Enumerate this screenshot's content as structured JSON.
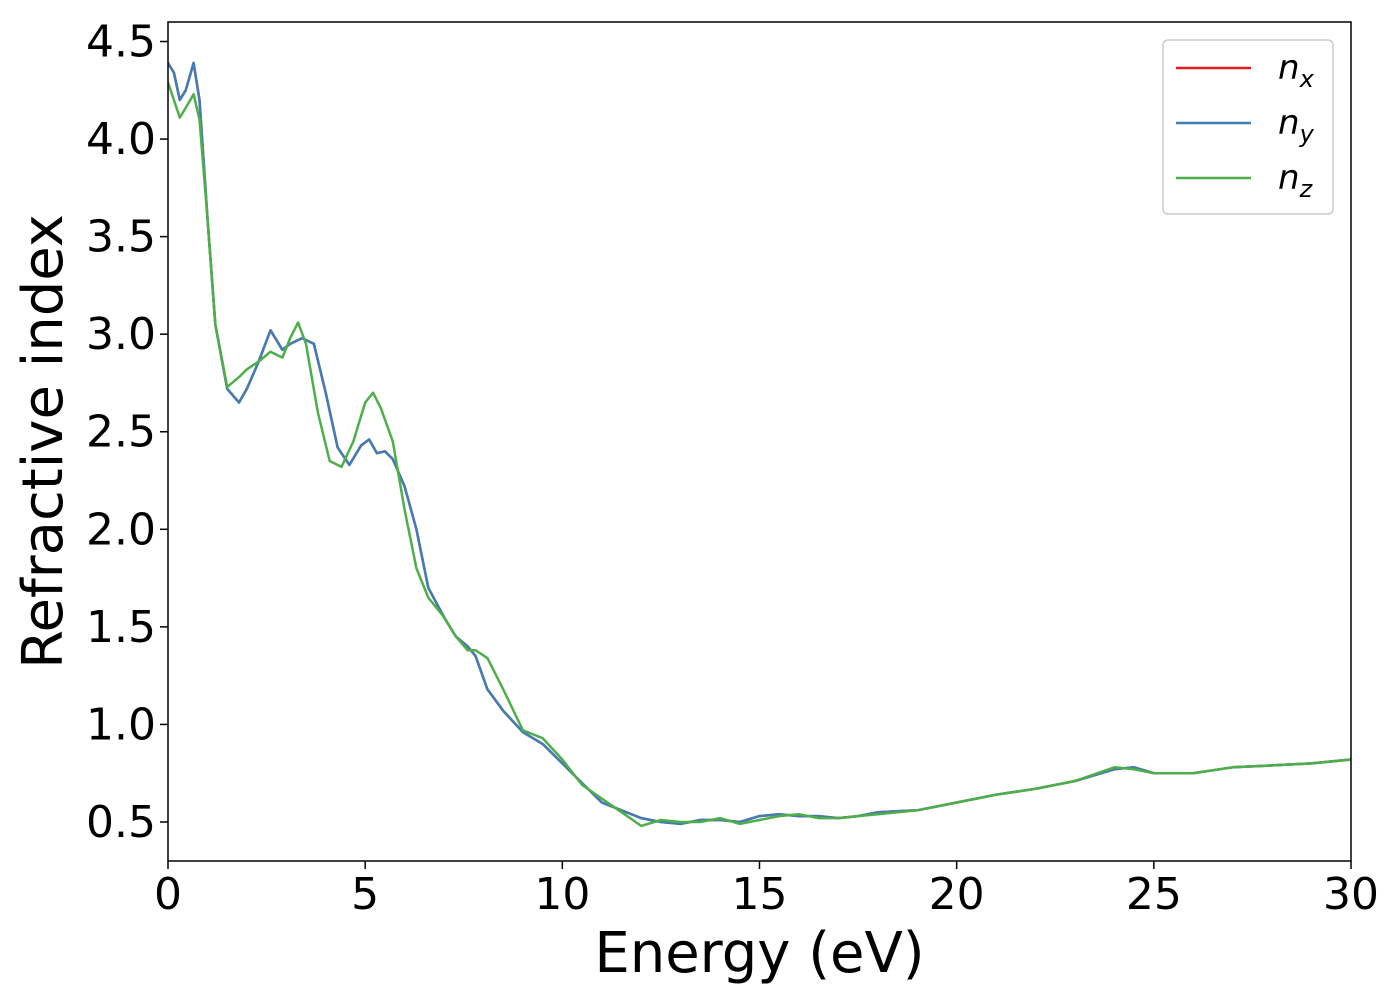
{
  "chart_data": {
    "type": "line",
    "xlabel": "Energy (eV)",
    "ylabel": "Refractive index",
    "xlim": [
      0,
      30
    ],
    "ylim": [
      0.3,
      4.6
    ],
    "xticks": [
      0,
      5,
      10,
      15,
      20,
      25,
      30
    ],
    "xtick_labels": [
      "0",
      "5",
      "10",
      "15",
      "20",
      "25",
      "30"
    ],
    "yticks": [
      0.5,
      1.0,
      1.5,
      2.0,
      2.5,
      3.0,
      3.5,
      4.0,
      4.5
    ],
    "ytick_labels": [
      "0.5",
      "1.0",
      "1.5",
      "2.0",
      "2.5",
      "3.0",
      "3.5",
      "4.0",
      "4.5"
    ],
    "grid": false,
    "legend_position": "top-right",
    "series": [
      {
        "name": "n_x",
        "legend_main": "n",
        "legend_sub": "x",
        "color": "#e41a1c",
        "x": [
          0,
          0.15,
          0.3,
          0.45,
          0.65,
          0.8,
          1.0,
          1.2,
          1.5,
          1.8,
          2.0,
          2.3,
          2.6,
          2.9,
          3.1,
          3.4,
          3.7,
          4.0,
          4.3,
          4.6,
          4.9,
          5.1,
          5.3,
          5.5,
          5.7,
          6.0,
          6.3,
          6.6,
          7.0,
          7.3,
          7.6,
          7.8,
          8.1,
          8.5,
          9.0,
          9.5,
          10.0,
          10.5,
          11.0,
          11.5,
          12.0,
          12.5,
          13.0,
          13.5,
          14.0,
          14.5,
          15.0,
          15.5,
          16.0,
          16.5,
          17.0,
          17.5,
          18.0,
          19.0,
          20.0,
          21.0,
          22.0,
          23.0,
          24.0,
          24.5,
          25.0,
          26.0,
          27.0,
          28.0,
          29.0,
          30.0
        ],
        "y": [
          4.39,
          4.34,
          4.2,
          4.25,
          4.39,
          4.2,
          3.6,
          3.05,
          2.72,
          2.65,
          2.72,
          2.86,
          3.02,
          2.92,
          2.95,
          2.98,
          2.95,
          2.7,
          2.42,
          2.33,
          2.43,
          2.46,
          2.39,
          2.4,
          2.36,
          2.22,
          2.0,
          1.7,
          1.55,
          1.45,
          1.4,
          1.35,
          1.18,
          1.07,
          0.96,
          0.9,
          0.8,
          0.7,
          0.6,
          0.56,
          0.52,
          0.5,
          0.49,
          0.51,
          0.51,
          0.5,
          0.53,
          0.54,
          0.53,
          0.53,
          0.52,
          0.53,
          0.55,
          0.56,
          0.6,
          0.64,
          0.67,
          0.71,
          0.77,
          0.78,
          0.75,
          0.75,
          0.78,
          0.79,
          0.8,
          0.82
        ]
      },
      {
        "name": "n_y",
        "legend_main": "n",
        "legend_sub": "y",
        "color": "#3f7fb5",
        "x": [
          0,
          0.15,
          0.3,
          0.45,
          0.65,
          0.8,
          1.0,
          1.2,
          1.5,
          1.8,
          2.0,
          2.3,
          2.6,
          2.9,
          3.1,
          3.4,
          3.7,
          4.0,
          4.3,
          4.6,
          4.9,
          5.1,
          5.3,
          5.5,
          5.7,
          6.0,
          6.3,
          6.6,
          7.0,
          7.3,
          7.6,
          7.8,
          8.1,
          8.5,
          9.0,
          9.5,
          10.0,
          10.5,
          11.0,
          11.5,
          12.0,
          12.5,
          13.0,
          13.5,
          14.0,
          14.5,
          15.0,
          15.5,
          16.0,
          16.5,
          17.0,
          17.5,
          18.0,
          19.0,
          20.0,
          21.0,
          22.0,
          23.0,
          24.0,
          24.5,
          25.0,
          26.0,
          27.0,
          28.0,
          29.0,
          30.0
        ],
        "y": [
          4.39,
          4.34,
          4.2,
          4.25,
          4.39,
          4.2,
          3.6,
          3.05,
          2.72,
          2.65,
          2.72,
          2.86,
          3.02,
          2.92,
          2.95,
          2.98,
          2.95,
          2.7,
          2.42,
          2.33,
          2.43,
          2.46,
          2.39,
          2.4,
          2.36,
          2.22,
          2.0,
          1.7,
          1.55,
          1.45,
          1.4,
          1.35,
          1.18,
          1.07,
          0.96,
          0.9,
          0.8,
          0.7,
          0.6,
          0.56,
          0.52,
          0.5,
          0.49,
          0.51,
          0.51,
          0.5,
          0.53,
          0.54,
          0.53,
          0.53,
          0.52,
          0.53,
          0.55,
          0.56,
          0.6,
          0.64,
          0.67,
          0.71,
          0.77,
          0.78,
          0.75,
          0.75,
          0.78,
          0.79,
          0.8,
          0.82
        ]
      },
      {
        "name": "n_z",
        "legend_main": "n",
        "legend_sub": "z",
        "color": "#4daf4a",
        "x": [
          0,
          0.15,
          0.3,
          0.45,
          0.65,
          0.8,
          1.0,
          1.2,
          1.5,
          1.8,
          2.0,
          2.3,
          2.6,
          2.9,
          3.1,
          3.3,
          3.5,
          3.8,
          4.1,
          4.4,
          4.7,
          5.0,
          5.2,
          5.4,
          5.7,
          6.0,
          6.3,
          6.6,
          7.0,
          7.3,
          7.6,
          7.8,
          8.1,
          8.5,
          9.0,
          9.5,
          10.0,
          10.5,
          11.0,
          11.5,
          12.0,
          12.5,
          13.0,
          13.5,
          14.0,
          14.5,
          15.0,
          15.5,
          16.0,
          16.5,
          17.0,
          17.5,
          18.0,
          19.0,
          20.0,
          21.0,
          22.0,
          23.0,
          24.0,
          24.5,
          25.0,
          26.0,
          27.0,
          28.0,
          29.0,
          30.0
        ],
        "y": [
          4.29,
          4.2,
          4.11,
          4.16,
          4.23,
          4.1,
          3.6,
          3.05,
          2.73,
          2.78,
          2.82,
          2.86,
          2.91,
          2.88,
          2.98,
          3.06,
          2.95,
          2.6,
          2.35,
          2.32,
          2.45,
          2.65,
          2.7,
          2.62,
          2.45,
          2.1,
          1.8,
          1.65,
          1.55,
          1.45,
          1.38,
          1.38,
          1.34,
          1.18,
          0.97,
          0.93,
          0.82,
          0.69,
          0.62,
          0.55,
          0.48,
          0.51,
          0.5,
          0.5,
          0.52,
          0.49,
          0.51,
          0.53,
          0.54,
          0.52,
          0.52,
          0.53,
          0.54,
          0.56,
          0.6,
          0.64,
          0.67,
          0.71,
          0.78,
          0.77,
          0.75,
          0.75,
          0.78,
          0.79,
          0.8,
          0.82
        ]
      }
    ]
  }
}
